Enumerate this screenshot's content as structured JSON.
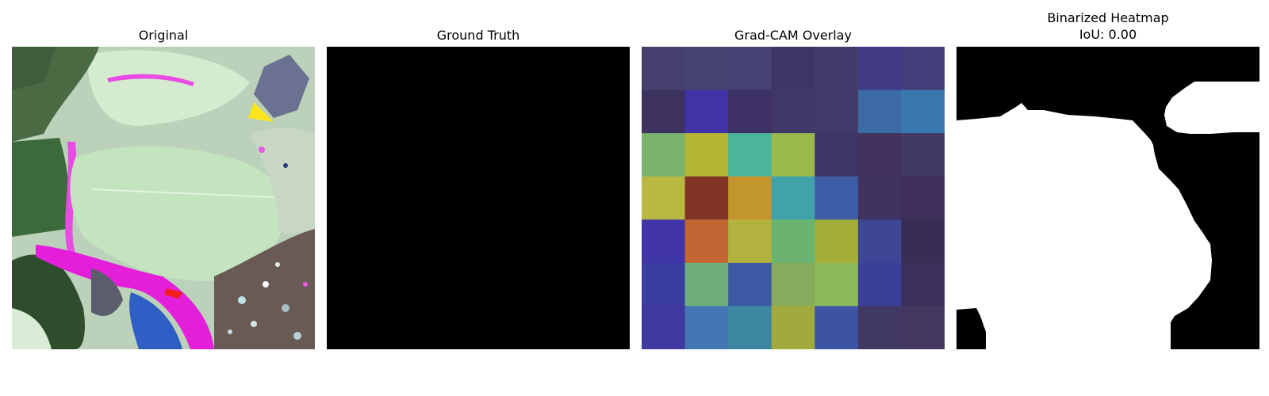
{
  "panels": {
    "original": {
      "title": "Original"
    },
    "ground_truth": {
      "title": "Ground Truth"
    },
    "gradcam": {
      "title": "Grad-CAM Overlay"
    },
    "binarized": {
      "title": "Binarized Heatmap",
      "subtitle": "IoU: 0.00"
    }
  },
  "chart_data": {
    "type": "heatmap",
    "rows": 7,
    "cols": 7,
    "cell_colors": [
      [
        "#45406f",
        "#454372",
        "#464273",
        "#3d3565",
        "#433c6b",
        "#413b86",
        "#423f7a"
      ],
      [
        "#3e335f",
        "#4033a8",
        "#3d3166",
        "#423868",
        "#433a6b",
        "#3c6aa4",
        "#3a77ae"
      ],
      [
        "#7bb26d",
        "#b6b435",
        "#4bb599",
        "#9aba4e",
        "#3f3567",
        "#41335e",
        "#423864"
      ],
      [
        "#b9b840",
        "#813328",
        "#c3962d",
        "#41a3aa",
        "#3d5ea7",
        "#40335f",
        "#3e2f5a"
      ],
      [
        "#4133a8",
        "#c26532",
        "#b2b33e",
        "#6bb46f",
        "#a2ae37",
        "#3f4696",
        "#372d55"
      ],
      [
        "#3c3da1",
        "#6fb07a",
        "#3c5aa3",
        "#87ab5c",
        "#8dba5a",
        "#3a3f9a",
        "#3d305a"
      ],
      [
        "#4039a0",
        "#4276b4",
        "#3d88a0",
        "#a1aa3d",
        "#3d54a3",
        "#423864",
        "#42375f"
      ]
    ],
    "ground_truth_mask": "all-zero",
    "binarized_mask": {
      "foreground": "#ffffff",
      "background": "#000000"
    },
    "iou": 0.0
  }
}
